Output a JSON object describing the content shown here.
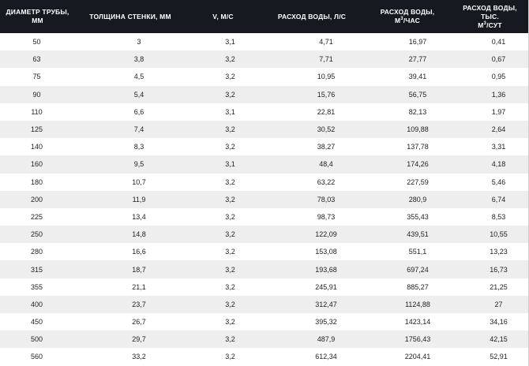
{
  "table": {
    "headers": {
      "diameter": [
        "ДИАМЕТР ТРУБЫ,",
        "ММ"
      ],
      "wall": "ТОЛЩИНА СТЕНКИ, ММ",
      "velocity": "V, М/С",
      "flow_ls": "РАСХОД ВОДЫ, Л/С",
      "flow_m3h": [
        "РАСХОД ВОДЫ,",
        "М",
        "3",
        "/ЧАС"
      ],
      "flow_m3d": [
        "РАСХОД ВОДЫ, ТЫС.",
        "М",
        "3",
        "/СУТ"
      ]
    },
    "rows": [
      [
        "50",
        "3",
        "3,1",
        "4,71",
        "16,97",
        "0,41"
      ],
      [
        "63",
        "3,8",
        "3,2",
        "7,71",
        "27,77",
        "0,67"
      ],
      [
        "75",
        "4,5",
        "3,2",
        "10,95",
        "39,41",
        "0,95"
      ],
      [
        "90",
        "5,4",
        "3,2",
        "15,76",
        "56,75",
        "1,36"
      ],
      [
        "110",
        "6,6",
        "3,1",
        "22,81",
        "82,13",
        "1,97"
      ],
      [
        "125",
        "7,4",
        "3,2",
        "30,52",
        "109,88",
        "2,64"
      ],
      [
        "140",
        "8,3",
        "3,2",
        "38,27",
        "137,78",
        "3,31"
      ],
      [
        "160",
        "9,5",
        "3,1",
        "48,4",
        "174,26",
        "4,18"
      ],
      [
        "180",
        "10,7",
        "3,2",
        "63,22",
        "227,59",
        "5,46"
      ],
      [
        "200",
        "11,9",
        "3,2",
        "78,03",
        "280,9",
        "6,74"
      ],
      [
        "225",
        "13,4",
        "3,2",
        "98,73",
        "355,43",
        "8,53"
      ],
      [
        "250",
        "14,8",
        "3,2",
        "122,09",
        "439,51",
        "10,55"
      ],
      [
        "280",
        "16,6",
        "3,2",
        "153,08",
        "551,1",
        "13,23"
      ],
      [
        "315",
        "18,7",
        "3,2",
        "193,68",
        "697,24",
        "16,73"
      ],
      [
        "355",
        "21,1",
        "3,2",
        "245,91",
        "885,27",
        "21,25"
      ],
      [
        "400",
        "23,7",
        "3,2",
        "312,47",
        "1124,88",
        "27"
      ],
      [
        "450",
        "26,7",
        "3,2",
        "395,32",
        "1423,14",
        "34,16"
      ],
      [
        "500",
        "29,7",
        "3,2",
        "487,9",
        "1756,43",
        "42,15"
      ],
      [
        "560",
        "33,2",
        "3,2",
        "612,34",
        "2204,41",
        "52,91"
      ]
    ]
  },
  "colors": {
    "header_bg": "#161a20",
    "header_text": "#ffffff",
    "row_alt_bg": "#eeeeee"
  }
}
